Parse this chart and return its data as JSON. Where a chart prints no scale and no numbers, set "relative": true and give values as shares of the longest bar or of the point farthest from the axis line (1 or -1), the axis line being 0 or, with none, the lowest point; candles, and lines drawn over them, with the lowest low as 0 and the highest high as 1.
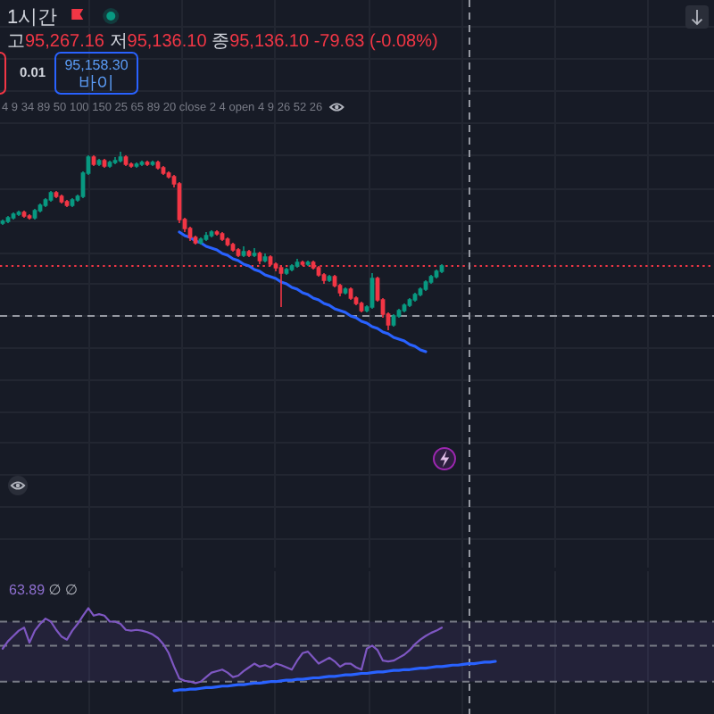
{
  "chart_data": [
    {
      "type": "candlestick",
      "title": "1시간",
      "subtitle": "고95,267.16 저95,136.10 종95,136.10 -79.63 (-0.08%)",
      "annotations": [
        "4 9 34 89 50 100 150 25 65 89 20 close 2 4 open 4 9 26 52 26",
        "0.01",
        "95,158.30",
        "바이"
      ],
      "relative": true,
      "grid": true,
      "categories": [
        null,
        null,
        null,
        null,
        null,
        null,
        null,
        null,
        null,
        null,
        null,
        null,
        null,
        null,
        null,
        null,
        null,
        null,
        null,
        null,
        null,
        null,
        null,
        null,
        null,
        null,
        null,
        null,
        null,
        null,
        null,
        null,
        null,
        null,
        null,
        null,
        null,
        null,
        null,
        null,
        null,
        null,
        null,
        null,
        null,
        null,
        null,
        null,
        null,
        null,
        null,
        null,
        null,
        null,
        null,
        null,
        null,
        null,
        null,
        null,
        null,
        null,
        null,
        null,
        null,
        null,
        null,
        null,
        null,
        null,
        null,
        null,
        null,
        null,
        null,
        null,
        null,
        null,
        null,
        null,
        null,
        null,
        null
      ],
      "ohlc": [
        [
          0.6,
          0.62,
          0.59,
          0.61
        ],
        [
          0.61,
          0.64,
          0.6,
          0.63
        ],
        [
          0.63,
          0.66,
          0.62,
          0.65
        ],
        [
          0.65,
          0.67,
          0.64,
          0.66
        ],
        [
          0.66,
          0.67,
          0.63,
          0.64
        ],
        [
          0.64,
          0.65,
          0.62,
          0.63
        ],
        [
          0.63,
          0.68,
          0.62,
          0.67
        ],
        [
          0.67,
          0.71,
          0.66,
          0.7
        ],
        [
          0.7,
          0.74,
          0.69,
          0.73
        ],
        [
          0.73,
          0.78,
          0.72,
          0.77
        ],
        [
          0.77,
          0.78,
          0.74,
          0.75
        ],
        [
          0.75,
          0.76,
          0.71,
          0.72
        ],
        [
          0.72,
          0.73,
          0.69,
          0.7
        ],
        [
          0.7,
          0.74,
          0.69,
          0.73
        ],
        [
          0.73,
          0.76,
          0.72,
          0.75
        ],
        [
          0.75,
          0.89,
          0.74,
          0.88
        ],
        [
          0.88,
          0.98,
          0.87,
          0.97
        ],
        [
          0.97,
          0.98,
          0.92,
          0.93
        ],
        [
          0.93,
          0.96,
          0.92,
          0.95
        ],
        [
          0.95,
          0.96,
          0.91,
          0.92
        ],
        [
          0.92,
          0.95,
          0.91,
          0.94
        ],
        [
          0.94,
          0.97,
          0.93,
          0.95
        ],
        [
          0.95,
          1.0,
          0.94,
          0.97
        ],
        [
          0.97,
          0.98,
          0.92,
          0.93
        ],
        [
          0.93,
          0.94,
          0.91,
          0.92
        ],
        [
          0.92,
          0.94,
          0.91,
          0.93
        ],
        [
          0.93,
          0.95,
          0.92,
          0.94
        ],
        [
          0.94,
          0.95,
          0.92,
          0.93
        ],
        [
          0.93,
          0.95,
          0.92,
          0.94
        ],
        [
          0.94,
          0.95,
          0.9,
          0.91
        ],
        [
          0.91,
          0.92,
          0.87,
          0.88
        ],
        [
          0.88,
          0.89,
          0.85,
          0.86
        ],
        [
          0.86,
          0.87,
          0.8,
          0.82
        ],
        [
          0.82,
          0.83,
          0.6,
          0.62
        ],
        [
          0.62,
          0.63,
          0.55,
          0.57
        ],
        [
          0.57,
          0.58,
          0.5,
          0.52
        ],
        [
          0.52,
          0.53,
          0.48,
          0.49
        ],
        [
          0.49,
          0.52,
          0.48,
          0.51
        ],
        [
          0.51,
          0.55,
          0.5,
          0.53
        ],
        [
          0.53,
          0.56,
          0.52,
          0.55
        ],
        [
          0.55,
          0.56,
          0.53,
          0.54
        ],
        [
          0.54,
          0.55,
          0.5,
          0.51
        ],
        [
          0.51,
          0.52,
          0.47,
          0.48
        ],
        [
          0.48,
          0.49,
          0.44,
          0.45
        ],
        [
          0.45,
          0.46,
          0.41,
          0.42
        ],
        [
          0.42,
          0.47,
          0.41,
          0.44
        ],
        [
          0.44,
          0.45,
          0.41,
          0.42
        ],
        [
          0.42,
          0.46,
          0.41,
          0.43
        ],
        [
          0.43,
          0.44,
          0.37,
          0.39
        ],
        [
          0.39,
          0.43,
          0.38,
          0.41
        ],
        [
          0.41,
          0.42,
          0.36,
          0.37
        ],
        [
          0.37,
          0.38,
          0.33,
          0.35
        ],
        [
          0.35,
          0.36,
          0.13,
          0.32
        ],
        [
          0.32,
          0.35,
          0.31,
          0.34
        ],
        [
          0.34,
          0.37,
          0.33,
          0.36
        ],
        [
          0.36,
          0.4,
          0.35,
          0.38
        ],
        [
          0.38,
          0.39,
          0.36,
          0.37
        ],
        [
          0.37,
          0.39,
          0.36,
          0.38
        ],
        [
          0.38,
          0.39,
          0.34,
          0.35
        ],
        [
          0.35,
          0.36,
          0.3,
          0.31
        ],
        [
          0.31,
          0.32,
          0.26,
          0.28
        ],
        [
          0.28,
          0.31,
          0.27,
          0.3
        ],
        [
          0.3,
          0.31,
          0.24,
          0.25
        ],
        [
          0.25,
          0.26,
          0.19,
          0.21
        ],
        [
          0.21,
          0.24,
          0.2,
          0.23
        ],
        [
          0.23,
          0.24,
          0.17,
          0.18
        ],
        [
          0.18,
          0.19,
          0.14,
          0.15
        ],
        [
          0.15,
          0.16,
          0.1,
          0.11
        ],
        [
          0.11,
          0.14,
          0.1,
          0.13
        ],
        [
          0.13,
          0.32,
          0.12,
          0.29
        ],
        [
          0.29,
          0.3,
          0.16,
          0.17
        ],
        [
          0.17,
          0.18,
          0.07,
          0.09
        ],
        [
          0.09,
          0.1,
          0.0,
          0.03
        ],
        [
          0.03,
          0.09,
          0.02,
          0.08
        ],
        [
          0.08,
          0.12,
          0.07,
          0.11
        ],
        [
          0.11,
          0.15,
          0.1,
          0.14
        ],
        [
          0.14,
          0.18,
          0.13,
          0.17
        ],
        [
          0.17,
          0.21,
          0.16,
          0.2
        ],
        [
          0.2,
          0.24,
          0.19,
          0.23
        ],
        [
          0.23,
          0.28,
          0.22,
          0.27
        ],
        [
          0.27,
          0.31,
          0.26,
          0.3
        ],
        [
          0.3,
          0.34,
          0.29,
          0.33
        ],
        [
          0.33,
          0.37,
          0.32,
          0.36
        ]
      ],
      "colors": [
        "#089981",
        "#089981",
        "#089981",
        "#089981",
        "#f23645",
        "#f23645",
        "#089981",
        "#089981",
        "#089981",
        "#089981",
        "#f23645",
        "#f23645",
        "#f23645",
        "#089981",
        "#089981",
        "#089981",
        "#089981",
        "#f23645",
        "#089981",
        "#f23645",
        "#089981",
        "#089981",
        "#089981",
        "#f23645",
        "#f23645",
        "#089981",
        "#089981",
        "#f23645",
        "#089981",
        "#f23645",
        "#f23645",
        "#f23645",
        "#f23645",
        "#f23645",
        "#f23645",
        "#f23645",
        "#f23645",
        "#089981",
        "#089981",
        "#089981",
        "#f23645",
        "#f23645",
        "#f23645",
        "#f23645",
        "#f23645",
        "#089981",
        "#f23645",
        "#089981",
        "#f23645",
        "#089981",
        "#f23645",
        "#f23645",
        "#f23645",
        "#089981",
        "#089981",
        "#089981",
        "#f23645",
        "#089981",
        "#f23645",
        "#f23645",
        "#f23645",
        "#089981",
        "#f23645",
        "#f23645",
        "#089981",
        "#f23645",
        "#f23645",
        "#f23645",
        "#089981",
        "#089981",
        "#f23645",
        "#f23645",
        "#f23645",
        "#089981",
        "#089981",
        "#089981",
        "#089981",
        "#089981",
        "#089981",
        "#089981",
        "#089981",
        "#089981",
        "#089981"
      ],
      "series": [
        {
          "type": "line",
          "color": "#2962ff",
          "values": [
            null,
            null,
            null,
            null,
            null,
            null,
            null,
            null,
            null,
            null,
            null,
            null,
            null,
            null,
            null,
            null,
            null,
            null,
            null,
            null,
            null,
            null,
            null,
            null,
            null,
            null,
            null,
            null,
            null,
            null,
            null,
            null,
            null,
            0.55,
            0.53,
            0.52,
            0.5,
            0.49,
            0.47,
            0.46,
            0.45,
            0.43,
            0.42,
            0.4,
            0.39,
            0.37,
            0.36,
            0.34,
            0.33,
            0.31,
            0.3,
            0.29,
            0.27,
            0.26,
            0.24,
            0.23,
            0.21,
            0.2,
            0.18,
            0.17,
            0.15,
            0.14,
            0.12,
            0.11,
            0.1,
            0.08,
            0.07,
            0.05,
            0.04,
            0.02,
            0.01,
            -0.01,
            -0.02,
            -0.04,
            -0.05,
            -0.06,
            -0.08,
            -0.09,
            -0.11,
            -0.12,
            null,
            null,
            null
          ]
        }
      ],
      "ref_lines": [
        {
          "axis": "y",
          "value": 0.36,
          "color": "#f23645",
          "line_style": "dotted"
        },
        {
          "axis": "y",
          "value": 0.08,
          "color": "#9598a1",
          "line_style": "dashed"
        }
      ]
    },
    {
      "type": "line",
      "annotations": [
        "63.89 ∅ ∅"
      ],
      "relative": true,
      "grid": "x",
      "categories": [
        null,
        null,
        null,
        null,
        null,
        null,
        null,
        null,
        null,
        null,
        null,
        null,
        null,
        null,
        null,
        null,
        null,
        null,
        null,
        null,
        null,
        null,
        null,
        null,
        null,
        null,
        null,
        null,
        null,
        null,
        null,
        null,
        null,
        null,
        null,
        null,
        null,
        null,
        null,
        null,
        null,
        null,
        null,
        null,
        null,
        null,
        null,
        null,
        null,
        null,
        null,
        null,
        null,
        null,
        null,
        null,
        null,
        null,
        null,
        null,
        null,
        null,
        null,
        null,
        null,
        null,
        null,
        null,
        null,
        null,
        null,
        null,
        null,
        null,
        null,
        null,
        null,
        null,
        null,
        null,
        null,
        null,
        null,
        null,
        null,
        null,
        null,
        null,
        null,
        null,
        null,
        null,
        null
      ],
      "series": [
        {
          "color": "#7e57c2",
          "values": [
            0.46,
            0.56,
            0.63,
            0.7,
            0.74,
            0.54,
            0.7,
            0.79,
            0.86,
            0.82,
            0.71,
            0.62,
            0.58,
            0.7,
            0.79,
            0.9,
            1.0,
            0.9,
            0.92,
            0.9,
            0.82,
            0.82,
            0.79,
            0.71,
            0.7,
            0.71,
            0.7,
            0.68,
            0.65,
            0.6,
            0.52,
            0.4,
            0.22,
            0.06,
            0.03,
            0.02,
            0.0,
            0.02,
            0.08,
            0.14,
            0.16,
            0.18,
            0.14,
            0.08,
            0.1,
            0.16,
            0.21,
            0.26,
            0.22,
            0.24,
            0.21,
            0.26,
            0.24,
            0.21,
            0.18,
            0.3,
            0.4,
            0.42,
            0.34,
            0.26,
            0.3,
            0.34,
            0.29,
            0.22,
            0.26,
            0.26,
            0.21,
            0.18,
            0.46,
            0.5,
            0.44,
            0.3,
            0.29,
            0.3,
            0.34,
            0.38,
            0.44,
            0.52,
            0.58,
            0.63,
            0.67,
            0.7,
            0.74,
            null,
            null,
            null,
            null,
            null,
            null,
            null,
            null,
            null,
            null
          ]
        },
        {
          "type": "line",
          "color": "#2962ff",
          "values": [
            null,
            null,
            null,
            null,
            null,
            null,
            null,
            null,
            null,
            null,
            null,
            null,
            null,
            null,
            null,
            null,
            null,
            null,
            null,
            null,
            null,
            null,
            null,
            null,
            null,
            null,
            null,
            null,
            null,
            null,
            null,
            null,
            -0.1,
            -0.09,
            -0.09,
            -0.08,
            -0.08,
            -0.07,
            -0.06,
            -0.06,
            -0.05,
            -0.04,
            -0.04,
            -0.03,
            -0.02,
            -0.02,
            -0.01,
            0.0,
            0.0,
            0.01,
            0.02,
            0.02,
            0.03,
            0.04,
            0.04,
            0.05,
            0.05,
            0.06,
            0.07,
            0.07,
            0.08,
            0.09,
            0.09,
            0.1,
            0.11,
            0.11,
            0.12,
            0.13,
            0.13,
            0.14,
            0.15,
            0.15,
            0.16,
            0.17,
            0.17,
            0.18,
            0.18,
            0.19,
            0.2,
            0.2,
            0.21,
            0.22,
            0.22,
            0.23,
            0.24,
            0.24,
            0.25,
            0.26,
            0.26,
            0.27,
            0.28,
            0.28,
            0.29
          ]
        }
      ],
      "bands": [
        {
          "axis": "y",
          "from": 0.02,
          "to": 0.82,
          "color": "#7e57c2"
        }
      ],
      "ref_lines": [
        {
          "axis": "y",
          "value": 0.82,
          "color": "#787b86",
          "line_style": "dashed"
        },
        {
          "axis": "y",
          "value": 0.5,
          "color": "#787b86",
          "line_style": "dashed"
        },
        {
          "axis": "y",
          "value": 0.02,
          "color": "#787b86",
          "line_style": "dashed"
        }
      ]
    }
  ]
}
